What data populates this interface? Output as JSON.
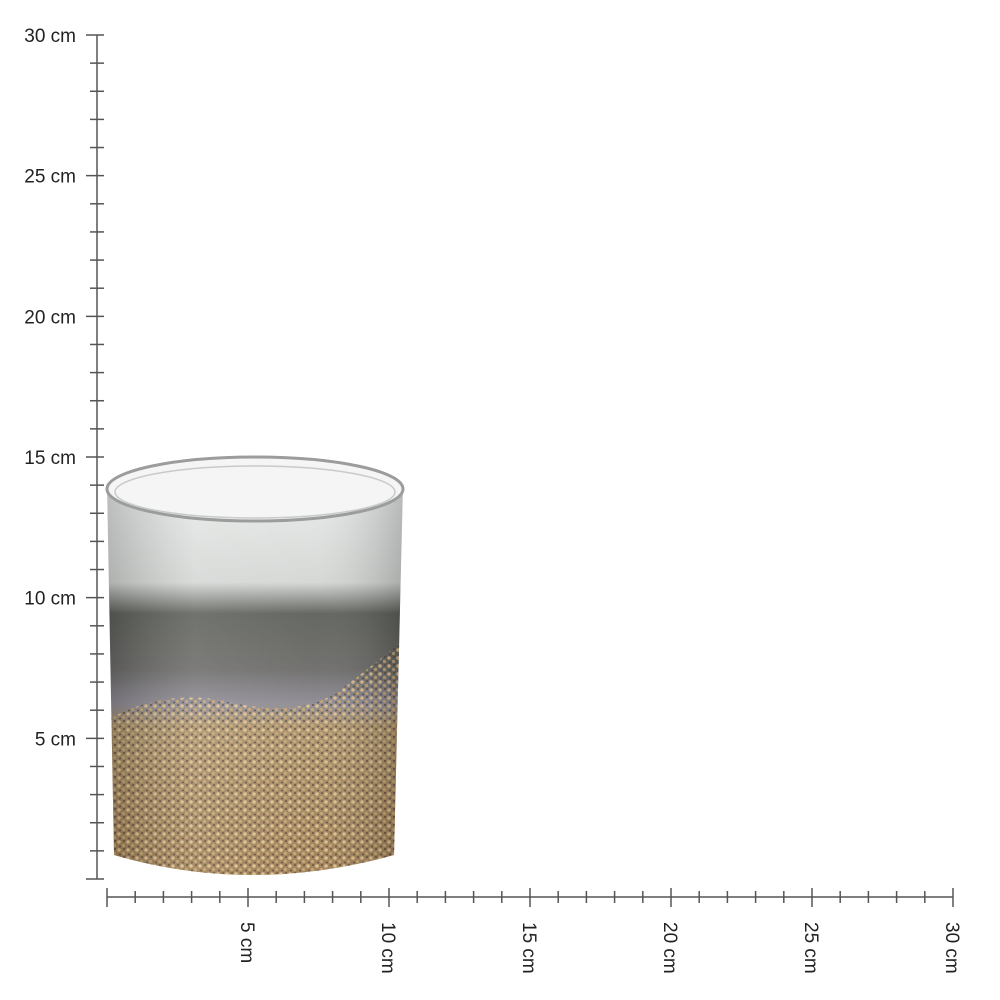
{
  "vertical_ruler": {
    "labels": [
      "30 cm",
      "25 cm",
      "20 cm",
      "15 cm",
      "10 cm",
      "5 cm"
    ]
  },
  "horizontal_ruler": {
    "labels": [
      "5 cm",
      "10 cm",
      "15 cm",
      "20 cm",
      "25 cm",
      "30 cm"
    ]
  }
}
